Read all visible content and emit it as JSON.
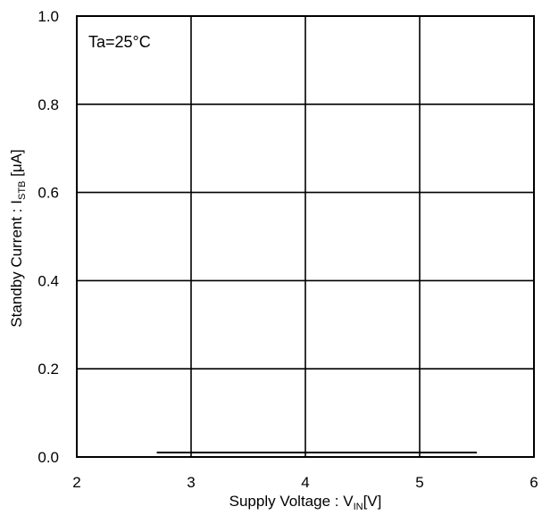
{
  "chart_data": {
    "type": "line",
    "title": "",
    "annotation": "Ta=25°C",
    "xlabel": {
      "prefix": "Supply Voltage : V",
      "subscript": "IN",
      "suffix": "[V]"
    },
    "ylabel": {
      "prefix": "Standby Current : I",
      "subscript": "STB",
      "suffix": " [μA]"
    },
    "xlim": [
      2,
      6
    ],
    "ylim": [
      0,
      1.0
    ],
    "xticks": [
      2,
      3,
      4,
      5,
      6
    ],
    "xtick_labels": [
      "2",
      "3",
      "4",
      "5",
      "6"
    ],
    "yticks": [
      0,
      0.2,
      0.4,
      0.6,
      0.8,
      1.0
    ],
    "ytick_labels": [
      "0.0",
      "0.2",
      "0.4",
      "0.6",
      "0.8",
      "1.0"
    ],
    "grid": true,
    "series": [
      {
        "x": [
          2.7,
          5.5
        ],
        "y": [
          0.01,
          0.01
        ]
      }
    ],
    "colors": {
      "line": "#000000",
      "grid": "#000000"
    }
  }
}
